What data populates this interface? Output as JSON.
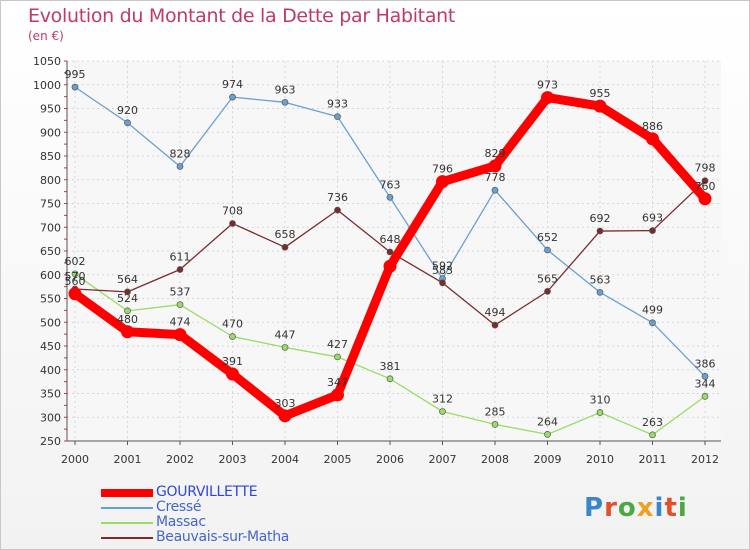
{
  "header": {
    "title": "Evolution du Montant de la Dette par Habitant",
    "subtitle": "(en €)"
  },
  "logo": {
    "text": "Proxiti",
    "letter_colors": [
      "#3a86c8",
      "#e0502a",
      "#4aa845",
      "#f0a020",
      "#3a86c8",
      "#e0502a",
      "#4aa845"
    ]
  },
  "chart_data": {
    "type": "line",
    "title": "Evolution du Montant de la Dette par Habitant",
    "subtitle": "(en €)",
    "xlabel": "",
    "ylabel": "",
    "categories": [
      "2000",
      "2001",
      "2002",
      "2003",
      "2004",
      "2005",
      "2006",
      "2007",
      "2008",
      "2009",
      "2010",
      "2011",
      "2012"
    ],
    "ylim": [
      250,
      1050
    ],
    "yticks": [
      250,
      300,
      350,
      400,
      450,
      500,
      550,
      600,
      650,
      700,
      750,
      800,
      850,
      900,
      950,
      1000,
      1050
    ],
    "grid": true,
    "legend_position": "bottom-left",
    "series": [
      {
        "name": "GOURVILLETTE",
        "color": "#ff0000",
        "thick": true,
        "values": [
          560,
          480,
          474,
          391,
          303,
          347,
          618,
          796,
          829,
          973,
          955,
          886,
          760
        ]
      },
      {
        "name": "Cressé",
        "color": "#6aa0d0",
        "thick": false,
        "values": [
          995,
          920,
          828,
          974,
          963,
          933,
          763,
          592,
          778,
          652,
          563,
          499,
          386
        ]
      },
      {
        "name": "Massac",
        "color": "#99dd66",
        "thick": false,
        "values": [
          602,
          524,
          537,
          470,
          447,
          427,
          381,
          312,
          285,
          264,
          310,
          263,
          344
        ]
      },
      {
        "name": "Beauvais-sur-Matha",
        "color": "#7a2b2b",
        "thick": false,
        "values": [
          570,
          564,
          611,
          708,
          658,
          736,
          648,
          583,
          494,
          565,
          692,
          693,
          798
        ]
      }
    ],
    "data_label_texts": {
      "GOURVILLETTE": [
        "560",
        "480",
        "474",
        "391",
        "303",
        "347",
        "",
        "796",
        "829",
        "973",
        "955",
        "886",
        "760"
      ],
      "Cressé": [
        "995",
        "920",
        "828",
        "974",
        "963",
        "933",
        "763",
        "592",
        "778",
        "652",
        "563",
        "499",
        "386"
      ],
      "Massac": [
        "602",
        "524",
        "537",
        "470",
        "447",
        "427",
        "381",
        "312",
        "285",
        "264",
        "310",
        "263",
        "344"
      ],
      "Beauvais-sur-Matha": [
        "570",
        "564",
        "611",
        "708",
        "658",
        "736",
        "648",
        "583",
        "494",
        "565",
        "692",
        "693",
        "798"
      ]
    }
  }
}
